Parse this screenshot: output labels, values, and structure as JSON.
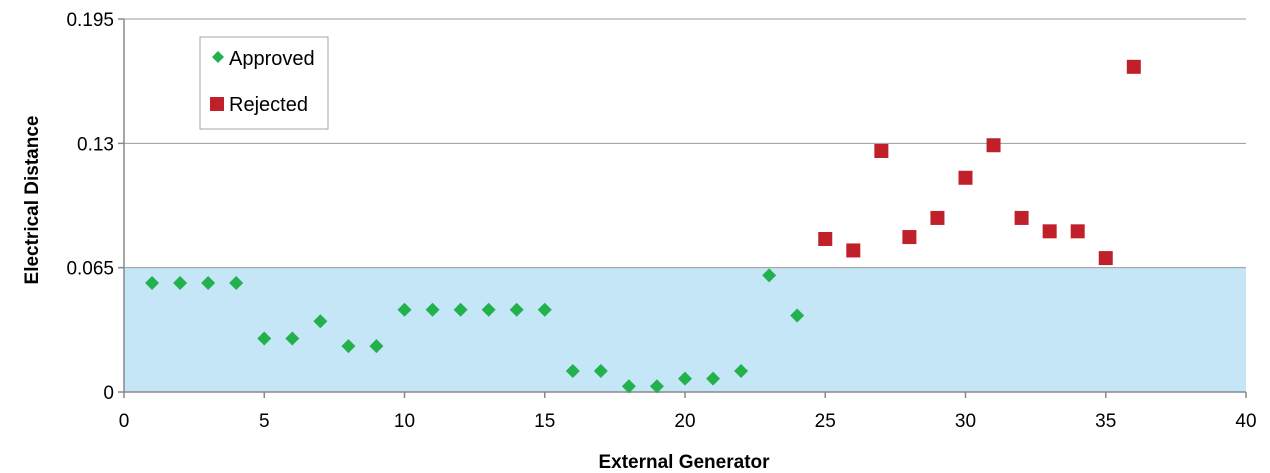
{
  "chart_data": {
    "type": "scatter",
    "title": "",
    "xlabel": "External Generator",
    "ylabel": "Electrical Distance",
    "xlim": [
      0,
      40
    ],
    "ylim": [
      0,
      0.195
    ],
    "x_ticks": [
      "0",
      "5",
      "10",
      "15",
      "20",
      "25",
      "30",
      "35",
      "40"
    ],
    "y_ticks": [
      "0",
      "0.065",
      "0.13",
      "0.195"
    ],
    "grid": "horizontal",
    "legend_position": "top-left",
    "shaded_region": {
      "y_from": 0,
      "y_to": 0.065,
      "color": "#c5e6f6"
    },
    "series": [
      {
        "name": "Approved",
        "marker": "diamond",
        "color": "#22b14c",
        "x": [
          1,
          2,
          3,
          4,
          5,
          6,
          7,
          8,
          9,
          10,
          11,
          12,
          13,
          14,
          15,
          16,
          17,
          18,
          19,
          20,
          21,
          22,
          23,
          24
        ],
        "y": [
          0.057,
          0.057,
          0.057,
          0.057,
          0.028,
          0.028,
          0.037,
          0.024,
          0.024,
          0.043,
          0.043,
          0.043,
          0.043,
          0.043,
          0.043,
          0.011,
          0.011,
          0.003,
          0.003,
          0.007,
          0.007,
          0.011,
          0.061,
          0.04
        ]
      },
      {
        "name": "Rejected",
        "marker": "square",
        "color": "#c0202a",
        "x": [
          25,
          26,
          27,
          28,
          29,
          30,
          31,
          32,
          33,
          34,
          35,
          36
        ],
        "y": [
          0.08,
          0.074,
          0.126,
          0.081,
          0.091,
          0.112,
          0.129,
          0.091,
          0.084,
          0.084,
          0.07,
          0.17
        ]
      }
    ]
  }
}
